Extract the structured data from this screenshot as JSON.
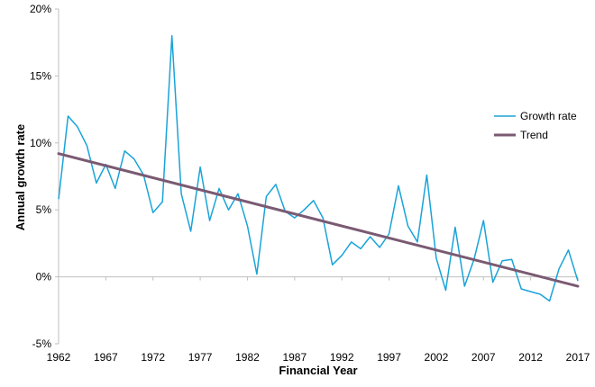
{
  "chart_data": {
    "type": "line",
    "xlabel": "Financial Year",
    "ylabel": "Annual growth rate",
    "x_ticks": [
      "1962",
      "1967",
      "1972",
      "1977",
      "1982",
      "1987",
      "1992",
      "1997",
      "2002",
      "2007",
      "2012",
      "2017"
    ],
    "y_ticks": [
      "-5%",
      "0%",
      "5%",
      "10%",
      "15%",
      "20%"
    ],
    "ylim": [
      -5,
      20
    ],
    "xlim": [
      1962,
      2017
    ],
    "grid": false,
    "legend_position": "right",
    "x": [
      1962,
      1963,
      1964,
      1965,
      1966,
      1967,
      1968,
      1969,
      1970,
      1971,
      1972,
      1973,
      1974,
      1975,
      1976,
      1977,
      1978,
      1979,
      1980,
      1981,
      1982,
      1983,
      1984,
      1985,
      1986,
      1987,
      1988,
      1989,
      1990,
      1991,
      1992,
      1993,
      1994,
      1995,
      1996,
      1997,
      1998,
      1999,
      2000,
      2001,
      2002,
      2003,
      2004,
      2005,
      2006,
      2007,
      2008,
      2009,
      2010,
      2011,
      2012,
      2013,
      2014,
      2015,
      2016,
      2017
    ],
    "series": [
      {
        "name": "Growth rate",
        "color": "#1aa3d9",
        "values": [
          5.8,
          12.0,
          11.2,
          9.8,
          7.0,
          8.4,
          6.6,
          9.4,
          8.8,
          7.6,
          4.8,
          5.6,
          18.0,
          6.2,
          3.4,
          8.2,
          4.2,
          6.6,
          5.0,
          6.2,
          3.8,
          0.2,
          6.0,
          6.9,
          4.9,
          4.4,
          5.0,
          5.7,
          4.4,
          0.9,
          1.6,
          2.6,
          2.1,
          3.0,
          2.2,
          3.2,
          6.8,
          3.8,
          2.6,
          7.6,
          1.4,
          -1.0,
          3.7,
          -0.7,
          1.3,
          4.2,
          -0.4,
          1.2,
          1.3,
          -0.9,
          -1.1,
          -1.3,
          -1.8,
          0.6,
          2.0,
          -0.3
        ]
      },
      {
        "name": "Trend",
        "color": "#7a5a72",
        "values_at_ends": [
          9.2,
          -0.7
        ]
      }
    ]
  }
}
